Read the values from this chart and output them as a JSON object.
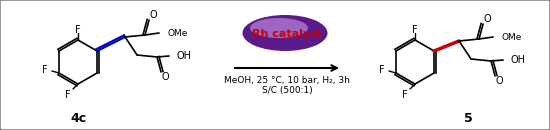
{
  "background_color": "#ffffff",
  "border_color": "#888888",
  "figsize": [
    5.5,
    1.3
  ],
  "dpi": 100,
  "compound4c_label": "4c",
  "compound5_label": "5",
  "arrow_text_line1": "MeOH, 25 °C, 10 bar, H₂, 3h",
  "arrow_text_line2": "S/C (500:1)",
  "catalyst_text": "Rh catalyst",
  "catalyst_color": "#cc0000",
  "ellipse_color_outer": "#5a1a8a",
  "ellipse_color_inner": "#c090e0",
  "arrow_color": "#000000",
  "bond_color": "#000000",
  "red_bond_color": "#cc0000",
  "blue_bond_color": "#0000bb",
  "text_fontsize": 7,
  "label_fontsize": 9,
  "catalyst_fontsize": 8
}
